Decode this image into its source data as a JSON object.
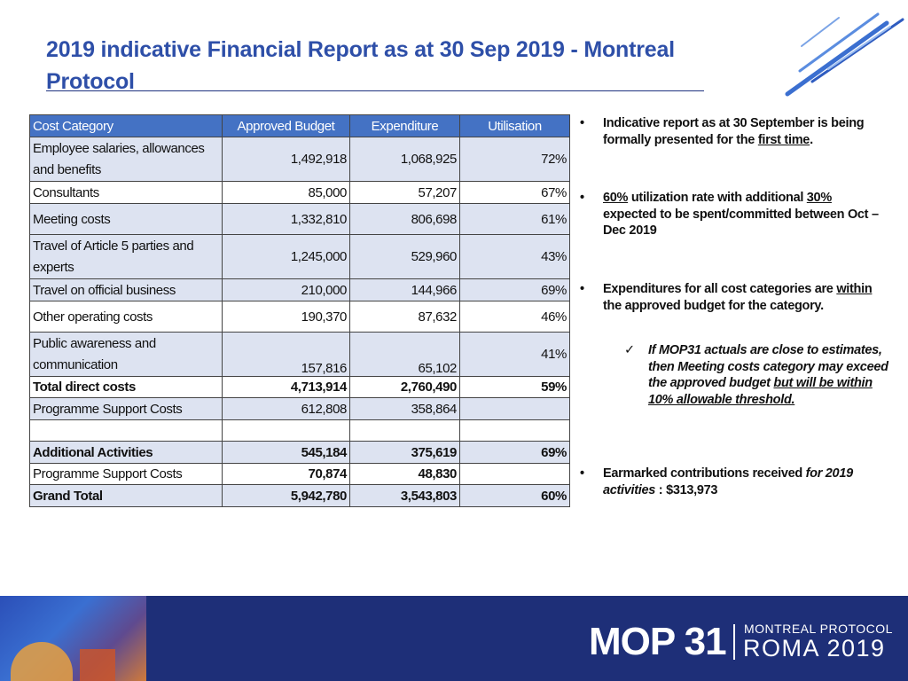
{
  "title": {
    "line1": "2019 indicative Financial Report as at 30 Sep 2019 - Montreal",
    "line2": "Protocol"
  },
  "table": {
    "headers": [
      "Cost Category",
      "Approved Budget",
      "Expenditure",
      "Utilisation"
    ],
    "rows": [
      {
        "category_line1": "Employee salaries, allowances",
        "category_line2": "and benefits",
        "budget": "1,492,918",
        "expenditure": "1,068,925",
        "utilisation": "72%"
      },
      {
        "category": "Consultants",
        "budget": "85,000",
        "expenditure": "57,207",
        "utilisation": "67%"
      },
      {
        "category": "Meeting costs",
        "budget": "1,332,810",
        "expenditure": "806,698",
        "utilisation": "61%"
      },
      {
        "category_line1": "Travel of Article 5 parties and",
        "category_line2": "experts",
        "budget": "1,245,000",
        "expenditure": "529,960",
        "utilisation": "43%"
      },
      {
        "category": "Travel on official business",
        "budget": "210,000",
        "expenditure": "144,966",
        "utilisation": "69%"
      },
      {
        "category": "Other operating costs",
        "budget": "190,370",
        "expenditure": "87,632",
        "utilisation": "46%"
      },
      {
        "category_line1": "Public awareness and",
        "category_line2": "communication",
        "budget": "157,816",
        "expenditure": "65,102",
        "utilisation": "41%"
      },
      {
        "category": "Total direct costs",
        "budget": "4,713,914",
        "expenditure": "2,760,490",
        "utilisation": "59%"
      },
      {
        "category": "Programme Support Costs",
        "budget": "612,808",
        "expenditure": "358,864",
        "utilisation": ""
      },
      {
        "category": "",
        "budget": "",
        "expenditure": "",
        "utilisation": ""
      },
      {
        "category": "Additional Activities",
        "budget": "545,184",
        "expenditure": "375,619",
        "utilisation": "69%"
      },
      {
        "category": "Programme Support Costs",
        "budget": "70,874",
        "expenditure": "48,830",
        "utilisation": ""
      },
      {
        "category": "Grand Total",
        "budget": "5,942,780",
        "expenditure": "3,543,803",
        "utilisation": "60%"
      }
    ]
  },
  "notes": {
    "bullet_glyph": "•",
    "n1": {
      "part1": "Indicative report as at 30 September is being formally presented for the ",
      "part2": "first time",
      "part3": "."
    },
    "n2": {
      "part1": "60%",
      "part2": " utilization rate with additional ",
      "part3": "30%",
      "part4": " expected to be spent/committed between Oct – Dec 2019"
    },
    "n3": {
      "part1": "Expenditures for all cost categories are ",
      "part2": "within",
      "part3": " the approved budget for the category."
    },
    "n3_sub": {
      "check": "✓",
      "part1": "If MOP31 actuals are close to estimates, then Meeting costs category may exceed the approved budget ",
      "part2": "but will be within 10% allowable threshold."
    },
    "n4": {
      "part1": "Earmarked contributions received ",
      "part2": "for 2019 activities",
      "part3": " : $313,973"
    }
  },
  "footer": {
    "brand": "MOP 31",
    "line1": "MONTREAL PROTOCOL",
    "line2": "ROMA 2019"
  },
  "colors": {
    "title": "#2e4fa8",
    "header_fill": "#4472c4",
    "band_fill": "#dde3f1",
    "footer_bg": "#1e2f78"
  }
}
